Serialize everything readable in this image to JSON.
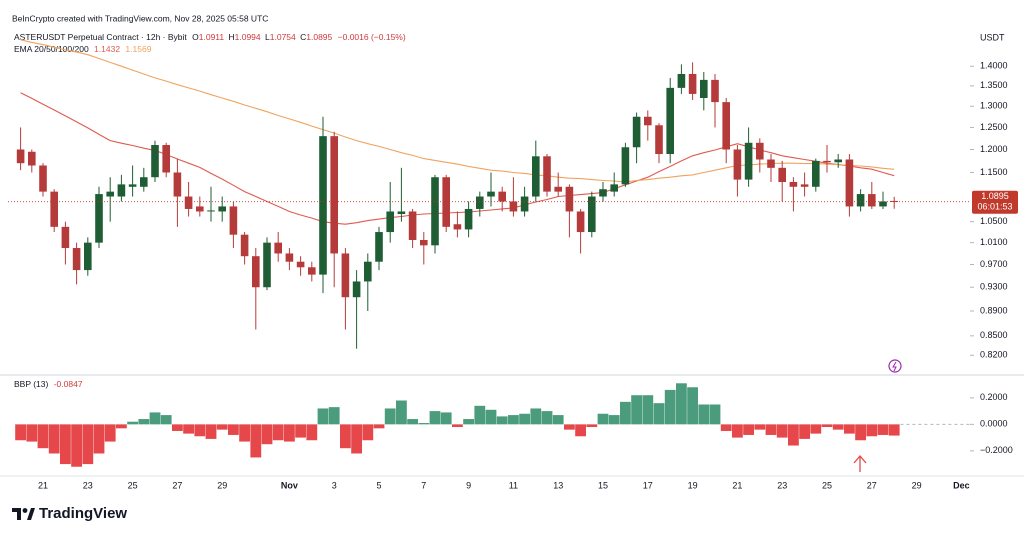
{
  "header": {
    "watermark": "BeInCrypto created with TradingView.com, Nov 28, 2025 05:58 UTC"
  },
  "footer": {
    "brand": "TradingView"
  },
  "chart_data": [
    {
      "type": "candlestick",
      "title": "ASTERUSDT Perpetual Contract · 12h · Bybit",
      "ohlc_labels": [
        "O",
        "H",
        "L",
        "C"
      ],
      "change_label": "−0.0016 (−0.15%)",
      "indicator_name": "EMA 20/50/100/200",
      "axis_label": "USDT",
      "countdown": "06:01:53",
      "log_scale": true,
      "grid": false,
      "up_color": "#1f5e34",
      "down_color": "#b53a3a",
      "price_line_color": "#c0392b",
      "categories": [
        null,
        null,
        "21",
        null,
        null,
        null,
        "23",
        null,
        null,
        null,
        "25",
        null,
        null,
        null,
        "27",
        null,
        null,
        null,
        "29",
        null,
        null,
        null,
        null,
        null,
        "Nov",
        null,
        null,
        null,
        "3",
        null,
        null,
        null,
        "5",
        null,
        null,
        null,
        "7",
        null,
        null,
        null,
        "9",
        null,
        null,
        null,
        "11",
        null,
        null,
        null,
        "13",
        null,
        null,
        null,
        "15",
        null,
        null,
        null,
        "17",
        null,
        null,
        null,
        "19",
        null,
        null,
        null,
        "21",
        null,
        null,
        null,
        "23",
        null,
        null,
        null,
        "25",
        null,
        null,
        null,
        "27",
        null,
        null,
        null,
        "29",
        null,
        null,
        null,
        "Dec"
      ],
      "open": [
        1.2,
        1.195,
        1.165,
        1.11,
        1.04,
        1.0,
        0.96,
        1.01,
        1.1,
        1.1,
        1.12,
        1.12,
        1.14,
        1.21,
        1.15,
        1.1,
        1.08,
        1.07,
        1.07,
        1.08,
        1.025,
        0.985,
        0.93,
        1.01,
        0.99,
        0.975,
        0.965,
        0.952,
        1.23,
        0.99,
        0.913,
        0.94,
        0.975,
        1.03,
        1.065,
        1.07,
        1.015,
        1.005,
        1.14,
        1.045,
        1.035,
        1.075,
        1.1,
        1.11,
        1.09,
        1.07,
        1.1,
        1.185,
        1.12,
        1.12,
        1.07,
        1.03,
        1.1,
        1.11,
        1.125,
        1.205,
        1.275,
        1.255,
        1.19,
        1.345,
        1.38,
        1.32,
        1.365,
        1.31,
        1.2,
        1.135,
        1.215,
        1.178,
        1.16,
        1.13,
        1.125,
        1.12,
        1.175,
        1.172,
        1.178,
        1.08,
        1.105,
        1.08,
        1.0911,
        null,
        null,
        null,
        null,
        null,
        null
      ],
      "high": [
        1.25,
        1.2,
        1.17,
        1.115,
        1.05,
        1.01,
        1.02,
        1.12,
        1.14,
        1.145,
        1.165,
        1.16,
        1.22,
        1.215,
        1.18,
        1.13,
        1.1,
        1.12,
        1.1,
        1.09,
        1.03,
        1.0,
        1.02,
        1.03,
        1.0,
        0.985,
        0.975,
        1.275,
        1.24,
        1.0,
        0.96,
        0.99,
        1.04,
        1.13,
        1.16,
        1.075,
        1.03,
        1.145,
        1.145,
        1.07,
        1.09,
        1.11,
        1.15,
        1.12,
        1.14,
        1.12,
        1.22,
        1.19,
        1.15,
        1.125,
        1.075,
        1.11,
        1.13,
        1.15,
        1.215,
        1.285,
        1.29,
        1.26,
        1.37,
        1.405,
        1.41,
        1.385,
        1.38,
        1.32,
        1.21,
        1.25,
        1.225,
        1.19,
        1.175,
        1.14,
        1.15,
        1.18,
        1.21,
        1.19,
        1.19,
        1.115,
        1.13,
        1.11,
        1.0994,
        null,
        null,
        null,
        null,
        null,
        null
      ],
      "low": [
        1.155,
        1.15,
        1.1,
        1.03,
        0.97,
        0.935,
        0.95,
        1.0,
        1.05,
        1.09,
        1.1,
        1.11,
        1.13,
        1.14,
        1.04,
        1.06,
        1.06,
        1.05,
        1.05,
        1.0,
        0.97,
        0.86,
        0.925,
        0.975,
        0.96,
        0.95,
        0.94,
        0.92,
        0.93,
        0.86,
        0.83,
        0.89,
        0.96,
        1.01,
        1.05,
        1.0,
        0.97,
        0.99,
        1.03,
        1.02,
        1.02,
        1.06,
        1.08,
        1.07,
        1.06,
        1.06,
        1.09,
        1.1,
        1.1,
        1.02,
        0.99,
        1.02,
        1.09,
        1.1,
        1.12,
        1.17,
        1.22,
        1.17,
        1.17,
        1.33,
        1.315,
        1.29,
        1.25,
        1.17,
        1.1,
        1.12,
        1.15,
        1.13,
        1.09,
        1.07,
        1.1,
        1.11,
        1.15,
        1.16,
        1.06,
        1.07,
        1.075,
        1.075,
        1.0754,
        null,
        null,
        null,
        null,
        null,
        null
      ],
      "close": [
        1.17,
        1.165,
        1.11,
        1.04,
        1.0,
        0.96,
        1.01,
        1.105,
        1.11,
        1.125,
        1.125,
        1.14,
        1.21,
        1.15,
        1.1,
        1.075,
        1.07,
        1.072,
        1.08,
        1.025,
        0.985,
        0.93,
        1.01,
        0.99,
        0.975,
        0.965,
        0.952,
        1.23,
        0.99,
        0.913,
        0.94,
        0.975,
        1.03,
        1.07,
        1.07,
        1.015,
        1.005,
        1.14,
        1.04,
        1.035,
        1.075,
        1.1,
        1.11,
        1.09,
        1.07,
        1.1,
        1.185,
        1.11,
        1.11,
        1.07,
        1.03,
        1.1,
        1.115,
        1.125,
        1.205,
        1.275,
        1.255,
        1.19,
        1.345,
        1.38,
        1.33,
        1.365,
        1.31,
        1.2,
        1.135,
        1.215,
        1.178,
        1.16,
        1.13,
        1.12,
        1.12,
        1.175,
        1.172,
        1.178,
        1.08,
        1.105,
        1.08,
        1.09,
        1.0895,
        null,
        null,
        null,
        null,
        null,
        null
      ],
      "series": [
        {
          "color": "#e05a4f",
          "values": [
            1.333,
            1.319,
            1.305,
            1.291,
            1.277,
            1.263,
            1.249,
            1.234,
            1.22,
            1.214,
            1.209,
            1.203,
            1.198,
            1.189,
            1.179,
            1.17,
            1.161,
            1.148,
            1.136,
            1.123,
            1.11,
            1.1,
            1.09,
            1.08,
            1.07,
            1.063,
            1.057,
            1.05,
            1.047,
            1.045,
            1.048,
            1.052,
            1.055,
            1.058,
            1.06,
            1.063,
            1.065,
            1.066,
            1.067,
            1.068,
            1.069,
            1.071,
            1.073,
            1.075,
            1.077,
            1.083,
            1.089,
            1.094,
            1.1,
            1.102,
            1.104,
            1.106,
            1.108,
            1.116,
            1.124,
            1.132,
            1.14,
            1.152,
            1.163,
            1.175,
            1.186,
            1.193,
            1.199,
            1.206,
            1.213,
            1.206,
            1.199,
            1.193,
            1.186,
            1.182,
            1.178,
            1.174,
            1.17,
            1.167,
            1.164,
            1.16,
            1.157,
            1.15,
            1.1432,
            null,
            null,
            null,
            null,
            null,
            null
          ]
        },
        {
          "color": "#f0a35e",
          "values": [
            1.47,
            1.463,
            1.457,
            1.45,
            1.443,
            1.437,
            1.43,
            1.42,
            1.41,
            1.4,
            1.39,
            1.38,
            1.37,
            1.362,
            1.353,
            1.345,
            1.337,
            1.328,
            1.32,
            1.312,
            1.303,
            1.295,
            1.287,
            1.278,
            1.27,
            1.262,
            1.253,
            1.245,
            1.237,
            1.228,
            1.22,
            1.213,
            1.207,
            1.2,
            1.193,
            1.187,
            1.18,
            1.176,
            1.172,
            1.168,
            1.163,
            1.159,
            1.155,
            1.153,
            1.15,
            1.148,
            1.145,
            1.143,
            1.14,
            1.138,
            1.137,
            1.135,
            1.133,
            1.132,
            1.13,
            1.133,
            1.135,
            1.138,
            1.14,
            1.143,
            1.145,
            1.15,
            1.155,
            1.16,
            1.165,
            1.166,
            1.168,
            1.169,
            1.17,
            1.17,
            1.169,
            1.169,
            1.168,
            1.167,
            1.165,
            1.164,
            1.162,
            1.159,
            1.1569,
            null,
            null,
            null,
            null,
            null,
            null
          ]
        }
      ],
      "ylim": [
        0.795,
        1.497
      ],
      "yticks": [
        {
          "value": 1.4,
          "label": "1.4000"
        },
        {
          "value": 1.35,
          "label": "1.3500"
        },
        {
          "value": 1.3,
          "label": "1.3000"
        },
        {
          "value": 1.25,
          "label": "1.2500"
        },
        {
          "value": 1.2,
          "label": "1.2000"
        },
        {
          "value": 1.15,
          "label": "1.1500"
        },
        {
          "value": 1.05,
          "label": "1.0500"
        },
        {
          "value": 1.01,
          "label": "1.0100"
        },
        {
          "value": 0.97,
          "label": "0.9700"
        },
        {
          "value": 0.93,
          "label": "0.9300"
        },
        {
          "value": 0.89,
          "label": "0.8900"
        },
        {
          "value": 0.85,
          "label": "0.8500"
        },
        {
          "value": 0.82,
          "label": "0.8200"
        }
      ]
    },
    {
      "type": "bar",
      "title": "BBP (13)",
      "positive_color": "#4a9c7c",
      "negative_color": "#e5474b",
      "values": [
        -0.12,
        -0.13,
        -0.18,
        -0.22,
        -0.3,
        -0.32,
        -0.3,
        -0.22,
        -0.13,
        -0.03,
        0.02,
        0.04,
        0.09,
        0.07,
        -0.05,
        -0.07,
        -0.09,
        -0.11,
        -0.04,
        -0.08,
        -0.13,
        -0.25,
        -0.15,
        -0.12,
        -0.13,
        -0.1,
        -0.12,
        0.12,
        0.13,
        -0.18,
        -0.22,
        -0.12,
        -0.03,
        0.12,
        0.18,
        0.04,
        0.01,
        0.1,
        0.09,
        -0.02,
        0.04,
        0.14,
        0.11,
        0.06,
        0.07,
        0.08,
        0.12,
        0.1,
        0.07,
        -0.04,
        -0.09,
        -0.02,
        0.08,
        0.07,
        0.17,
        0.22,
        0.22,
        0.16,
        0.26,
        0.31,
        0.28,
        0.15,
        0.15,
        -0.05,
        -0.1,
        -0.08,
        -0.04,
        -0.08,
        -0.1,
        -0.16,
        -0.11,
        -0.07,
        -0.02,
        -0.04,
        -0.07,
        -0.12,
        -0.09,
        -0.08,
        -0.0847,
        null,
        null,
        null,
        null,
        null,
        null
      ],
      "ylim": [
        -0.39,
        0.35
      ],
      "yticks": [
        {
          "value": 0.2,
          "label": "0.2000"
        },
        {
          "value": 0,
          "label": "0.0000"
        },
        {
          "value": -0.2,
          "label": "−0.2000"
        }
      ]
    }
  ]
}
